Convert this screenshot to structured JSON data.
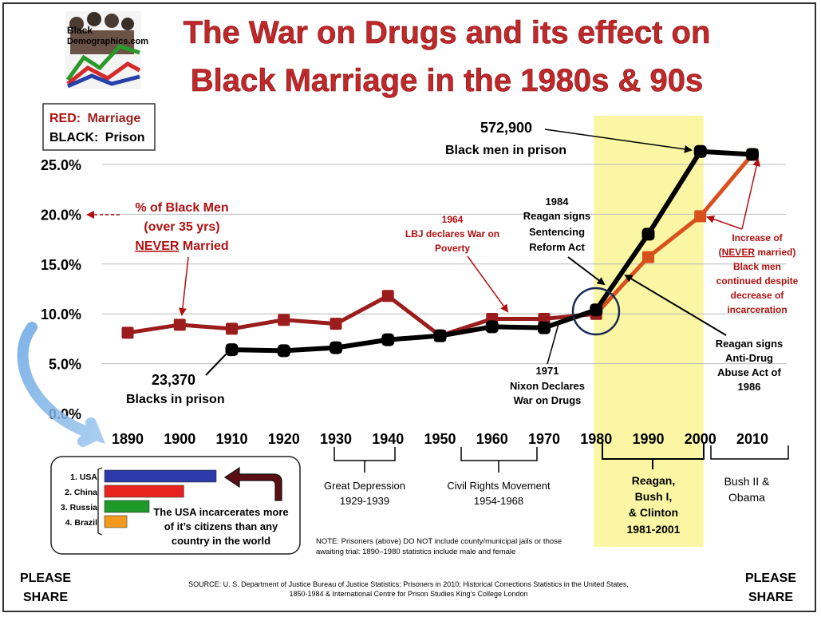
{
  "header": {
    "logo_text_1": "Black",
    "logo_text_2": "Demographics.com",
    "title_line1": "The War on Drugs and its effect on",
    "title_line2": "Black Marriage in the 1980s & 90s"
  },
  "legend": {
    "red_key": "RED:",
    "red_label": "Marriage",
    "black_key": "BLACK:",
    "black_label": "Prison"
  },
  "colors": {
    "title_red": "#c0282a",
    "marriage_line": "#9b1c1c",
    "prison_line": "#000000",
    "highlight": "#fbf59a",
    "annotation_red": "#b01010",
    "grid": "#b8b8b8"
  },
  "chart_data": {
    "type": "line",
    "x": [
      1890,
      1900,
      1910,
      1920,
      1930,
      1940,
      1950,
      1960,
      1970,
      1980,
      1990,
      2000,
      2010
    ],
    "ylim": [
      0,
      25
    ],
    "yticks": [
      "0.0%",
      "5.0%",
      "10.0%",
      "15.0%",
      "20.0%",
      "25.0%"
    ],
    "xticks": [
      "1890",
      "1900",
      "1910",
      "1920",
      "1930",
      "1940",
      "1950",
      "1960",
      "1970",
      "1980",
      "1990",
      "2000",
      "2010"
    ],
    "series": [
      {
        "name": "Marriage",
        "values": [
          8.1,
          8.9,
          8.5,
          9.4,
          9.0,
          11.8,
          7.8,
          9.5,
          9.5,
          10.0,
          15.7,
          19.8,
          26.0
        ]
      },
      {
        "name": "Prison",
        "values": [
          null,
          null,
          6.4,
          6.3,
          6.6,
          7.4,
          7.8,
          8.7,
          8.6,
          10.4,
          18.0,
          26.3,
          26.0
        ]
      }
    ],
    "grid": "horizontal",
    "highlight_range": [
      1980,
      2000
    ]
  },
  "annotations": {
    "prisoners_2000_value": "572,900",
    "prisoners_2000_label": "Black men in prison",
    "prisoners_1910_value": "23,370",
    "prisoners_1910_label": "Blacks in prison",
    "never_married": [
      "% of Black Men",
      "(over 35 yrs)",
      "NEVER",
      " Married"
    ],
    "lbj": [
      "1964",
      "LBJ declares War on",
      "Poverty"
    ],
    "reagan_1984": [
      "1984",
      "Reagan signs",
      "Sentencing",
      "Reform Act"
    ],
    "nixon": [
      "1971",
      "Nixon Declares",
      "War on Drugs"
    ],
    "reagan_1986": [
      "Reagan signs",
      "Anti-Drug",
      "Abuse Act of",
      "1986"
    ],
    "increase": [
      "Increase of",
      "(",
      "NEVER",
      " married)",
      "Black men",
      "continued despite",
      "decrease of",
      "incarceration"
    ]
  },
  "eras": [
    {
      "lines": [
        "Great Depression",
        "1929-1939"
      ]
    },
    {
      "lines": [
        "Civil Rights Movement",
        "1954-1968"
      ]
    },
    {
      "lines": [
        "Reagan,",
        "Bush I,",
        "& Clinton",
        "1981-2001"
      ]
    },
    {
      "lines": [
        "Bush II &",
        "Obama"
      ]
    }
  ],
  "inset": {
    "countries": [
      "1. USA",
      "2. China",
      "3. Russia",
      "4. Brazil"
    ],
    "bar_values": [
      100,
      71,
      40,
      20
    ],
    "bar_colors": [
      "#2b3aa8",
      "#e8231f",
      "#1f9a2a",
      "#f29a1e"
    ],
    "caption": [
      "The USA incarcerates more",
      "of it’s citizens than any",
      "country in the world"
    ]
  },
  "note": [
    "NOTE:  Prisoners (above) DO NOT include county/municipal jails or those",
    "awaiting trial: 1890–1980 statistics include male and female"
  ],
  "source": [
    "SOURCE:  U. S. Department of Justice Bureau of Justice Statistics; Prisoners in 2010; Historical Corrections Statistics in the United States,",
    "1850-1984 & International Centre for Prison Studies King’s College London"
  ],
  "share_left": [
    "PLEASE",
    "SHARE"
  ],
  "share_right": [
    "PLEASE",
    "SHARE"
  ]
}
